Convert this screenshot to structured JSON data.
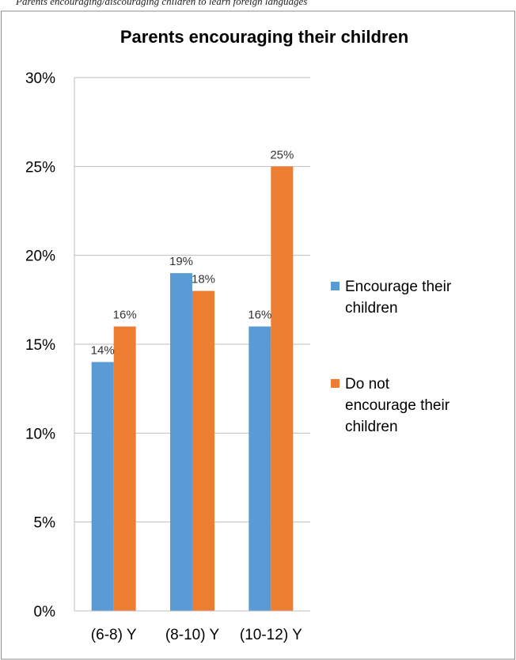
{
  "caption": "Parents encouraging/discouraging children to learn foreign languages",
  "chart_data": {
    "type": "bar",
    "title": "Parents encouraging their children",
    "xlabel": "",
    "ylabel": "",
    "categories": [
      "(6-8) Y",
      "(8-10) Y",
      "(10-12) Y"
    ],
    "series": [
      {
        "name": "Encourage their children",
        "values": [
          14,
          19,
          16
        ],
        "labels": [
          "14%",
          "19%",
          "16%"
        ],
        "color": "#5B9BD5"
      },
      {
        "name": "Do not encourage their children",
        "values": [
          16,
          18,
          25
        ],
        "labels": [
          "16%",
          "18%",
          "25%"
        ],
        "color": "#ED7D31"
      }
    ],
    "ylim": [
      0,
      30
    ],
    "yticks": [
      0,
      5,
      10,
      15,
      20,
      25,
      30
    ],
    "ytick_labels": [
      "0%",
      "5%",
      "10%",
      "15%",
      "20%",
      "25%",
      "30%"
    ],
    "grid": true,
    "legend_position": "right"
  }
}
